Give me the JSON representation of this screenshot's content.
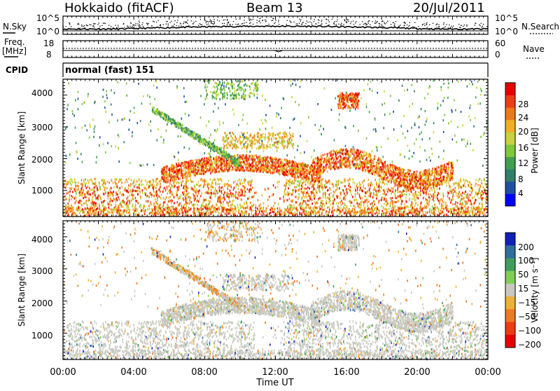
{
  "header": {
    "site": "Hokkaido (fitACF)",
    "beam": "Beam 13",
    "date": "20/Jul/2011"
  },
  "noise_panel": {
    "left_label": "N.Sky",
    "right_label": "N.Search",
    "left_ticks": [
      "10^5",
      "10^0"
    ],
    "right_ticks": [
      "10^5",
      "10^0"
    ]
  },
  "freq_panel": {
    "left_label_1": "Freq.",
    "left_label_2": "[MHz]",
    "left_ticks": [
      "18",
      "8"
    ],
    "right_label": "Nave",
    "right_ticks": [
      "60",
      "0"
    ]
  },
  "cpid_panel": {
    "label": "CPID",
    "mode": "normal (fast) 151"
  },
  "power_panel": {
    "ylabel": "Slant Range [km]",
    "yticks": [
      "4000",
      "3000",
      "2000",
      "1000"
    ],
    "colorbar_label": "Power [dB]",
    "colorbar_ticks": [
      "28",
      "24",
      "20",
      "16",
      "12",
      "8",
      "4"
    ],
    "colors": [
      "#0000ff",
      "#1e4fa0",
      "#2f7f6a",
      "#3fa050",
      "#7ec83a",
      "#c8d23a",
      "#f0b020",
      "#f07818",
      "#f03c10",
      "#e80000"
    ]
  },
  "velocity_panel": {
    "ylabel": "Slant Range [km]",
    "yticks": [
      "4000",
      "3000",
      "2000",
      "1000"
    ],
    "colorbar_label": "Velocity [m s⁻¹]",
    "colorbar_ticks": [
      "200",
      "100",
      "50",
      "15",
      "−15",
      "−50",
      "−100",
      "−200"
    ],
    "colors": [
      "#1020c0",
      "#2f6fa0",
      "#3e9e5e",
      "#7ed050",
      "#c8c8c0",
      "#f0b030",
      "#f07820",
      "#f03c10",
      "#e80000"
    ],
    "ground_scatter_color": "#c8c8c0"
  },
  "xaxis": {
    "ticks": [
      "00:00",
      "04:00",
      "08:00",
      "12:00",
      "16:00",
      "20:00",
      "00:00"
    ],
    "label": "Time UT"
  },
  "chart_data": [
    {
      "type": "line",
      "name": "noise",
      "x_range_hours": [
        0,
        24
      ],
      "yscale": "log",
      "ylim": [
        1,
        100000
      ]
    },
    {
      "type": "line",
      "name": "frequency and nave",
      "x_range_hours": [
        0,
        24
      ],
      "ylim": [
        8,
        18
      ],
      "ylim_right": [
        0,
        60
      ]
    },
    {
      "type": "heatmap",
      "name": "power",
      "x_range_hours": [
        0,
        24
      ],
      "ylim": [
        180,
        4500
      ],
      "zlim": [
        0,
        30
      ],
      "colorbar_ticks": [
        28,
        24,
        20,
        16,
        12,
        8,
        4
      ]
    },
    {
      "type": "heatmap",
      "name": "velocity",
      "x_range_hours": [
        0,
        24
      ],
      "ylim": [
        180,
        4500
      ],
      "zlim": [
        -250,
        250
      ],
      "colorbar_ticks": [
        200,
        100,
        50,
        15,
        -15,
        -50,
        -100,
        -200
      ]
    }
  ]
}
